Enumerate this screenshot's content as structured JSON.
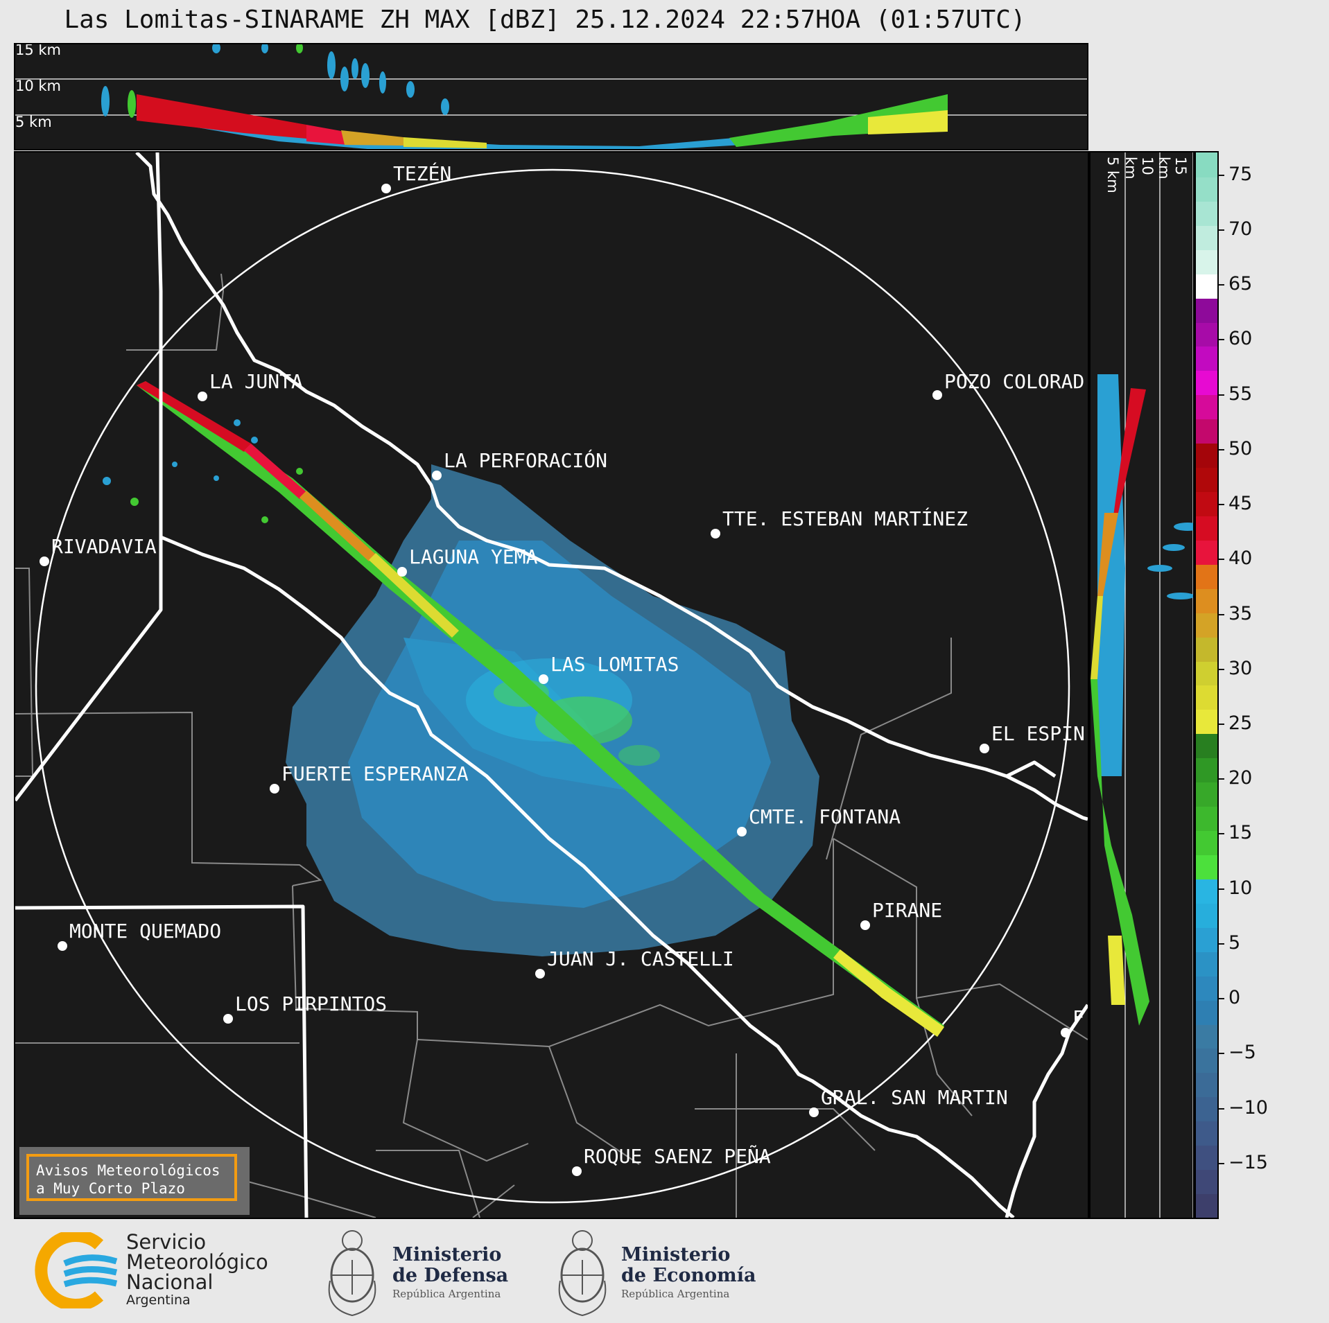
{
  "title": "Las Lomitas-SINARAME ZH MAX [dBZ] 25.12.2024 22:57HOA (01:57UTC)",
  "top_panel": {
    "height_labels": [
      "15 km",
      "10 km",
      "5 km"
    ]
  },
  "side_panel": {
    "height_labels": [
      "5 km",
      "10 km",
      "15 km"
    ]
  },
  "colorbar": {
    "unit": "dBZ",
    "ticks": [
      "75",
      "70",
      "65",
      "60",
      "55",
      "50",
      "45",
      "40",
      "35",
      "30",
      "25",
      "20",
      "15",
      "10",
      "5",
      "0",
      "−5",
      "−10",
      "−15"
    ],
    "tick_values": [
      75,
      70,
      65,
      60,
      55,
      50,
      45,
      40,
      35,
      30,
      25,
      20,
      15,
      10,
      5,
      0,
      -5,
      -10,
      -15
    ],
    "range": [
      -20,
      77
    ],
    "colors": [
      "#3d3f6b",
      "#3f4877",
      "#3f5080",
      "#3e5a8a",
      "#3c6391",
      "#3b6b97",
      "#3a739d",
      "#3a7ba3",
      "#2e7fb2",
      "#2d88bd",
      "#2b92c5",
      "#2aa0d3",
      "#27aedc",
      "#29b5e2",
      "#4ce03c",
      "#43c932",
      "#3db82d",
      "#37a829",
      "#2f9825",
      "#287f20",
      "#e8e83a",
      "#dddb32",
      "#cfcf30",
      "#c4b82c",
      "#d4a326",
      "#dd8e1f",
      "#e27417",
      "#e8143c",
      "#d60c22",
      "#c10a12",
      "#b0080a",
      "#a4050a",
      "#c3086c",
      "#d60a9a",
      "#e70ad2",
      "#c20ac0",
      "#a70ba8",
      "#8e0a9a",
      "#ffffff",
      "#d8f4ea",
      "#c0ecde",
      "#a8e5d3",
      "#95dfc8",
      "#88dbc1"
    ]
  },
  "map": {
    "range_ring": "240 km",
    "cities": [
      {
        "name": "TEZÉN"
      },
      {
        "name": "LA JUNTA"
      },
      {
        "name": "POZO COLORAD"
      },
      {
        "name": "LA PERFORACIÓN"
      },
      {
        "name": "TTE. ESTEBAN MARTÍNEZ"
      },
      {
        "name": "RIVADAVIA"
      },
      {
        "name": "LAGUNA YEMA"
      },
      {
        "name": "LAS LOMITAS"
      },
      {
        "name": "EL ESPIN"
      },
      {
        "name": "FUERTE ESPERANZA"
      },
      {
        "name": "CMTE. FONTANA"
      },
      {
        "name": "PIRANE"
      },
      {
        "name": "MONTE QUEMADO"
      },
      {
        "name": "JUAN J. CASTELLI"
      },
      {
        "name": "LOS PIRPINTOS"
      },
      {
        "name": "F"
      },
      {
        "name": "GRAL. SAN MARTIN"
      },
      {
        "name": "ROQUE SAENZ PEÑA"
      }
    ]
  },
  "warning_box": {
    "line1": "Avisos Meteorológicos",
    "line2": "a Muy Corto Plazo"
  },
  "logos": {
    "smn": {
      "line1": "Servicio",
      "line2": "Meteorológico",
      "line3": "Nacional",
      "line4": "Argentina"
    },
    "defensa": {
      "line1": "Ministerio",
      "line2": "de Defensa",
      "line3": "República Argentina"
    },
    "economia": {
      "line1": "Ministerio",
      "line2": "de Economía",
      "line3": "República Argentina"
    }
  }
}
